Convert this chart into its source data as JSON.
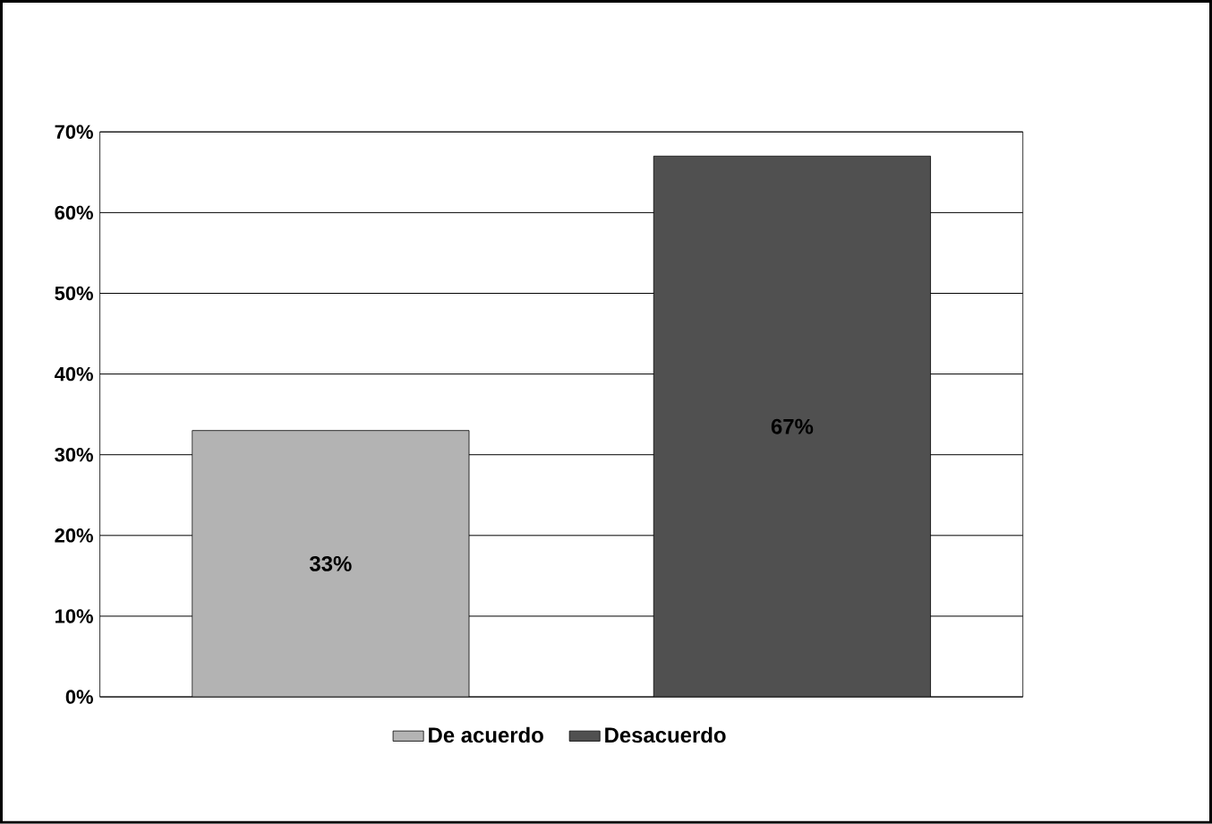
{
  "chart_data": {
    "type": "bar",
    "categories": [
      null
    ],
    "series": [
      {
        "name": "De acuerdo",
        "color": "#b3b3b3",
        "values": [
          33
        ],
        "value_labels": [
          "33%"
        ]
      },
      {
        "name": "Desacuerdo",
        "color": "#505050",
        "values": [
          67
        ],
        "value_labels": [
          "67%"
        ]
      }
    ],
    "ylim": [
      0,
      70
    ],
    "yticks": [
      {
        "value": 0,
        "label": "0%"
      },
      {
        "value": 10,
        "label": "10%"
      },
      {
        "value": 20,
        "label": "20%"
      },
      {
        "value": 30,
        "label": "30%"
      },
      {
        "value": 40,
        "label": "40%"
      },
      {
        "value": 50,
        "label": "50%"
      },
      {
        "value": 60,
        "label": "60%"
      },
      {
        "value": 70,
        "label": "70%"
      }
    ],
    "grid": "y",
    "legend": "bottom"
  }
}
